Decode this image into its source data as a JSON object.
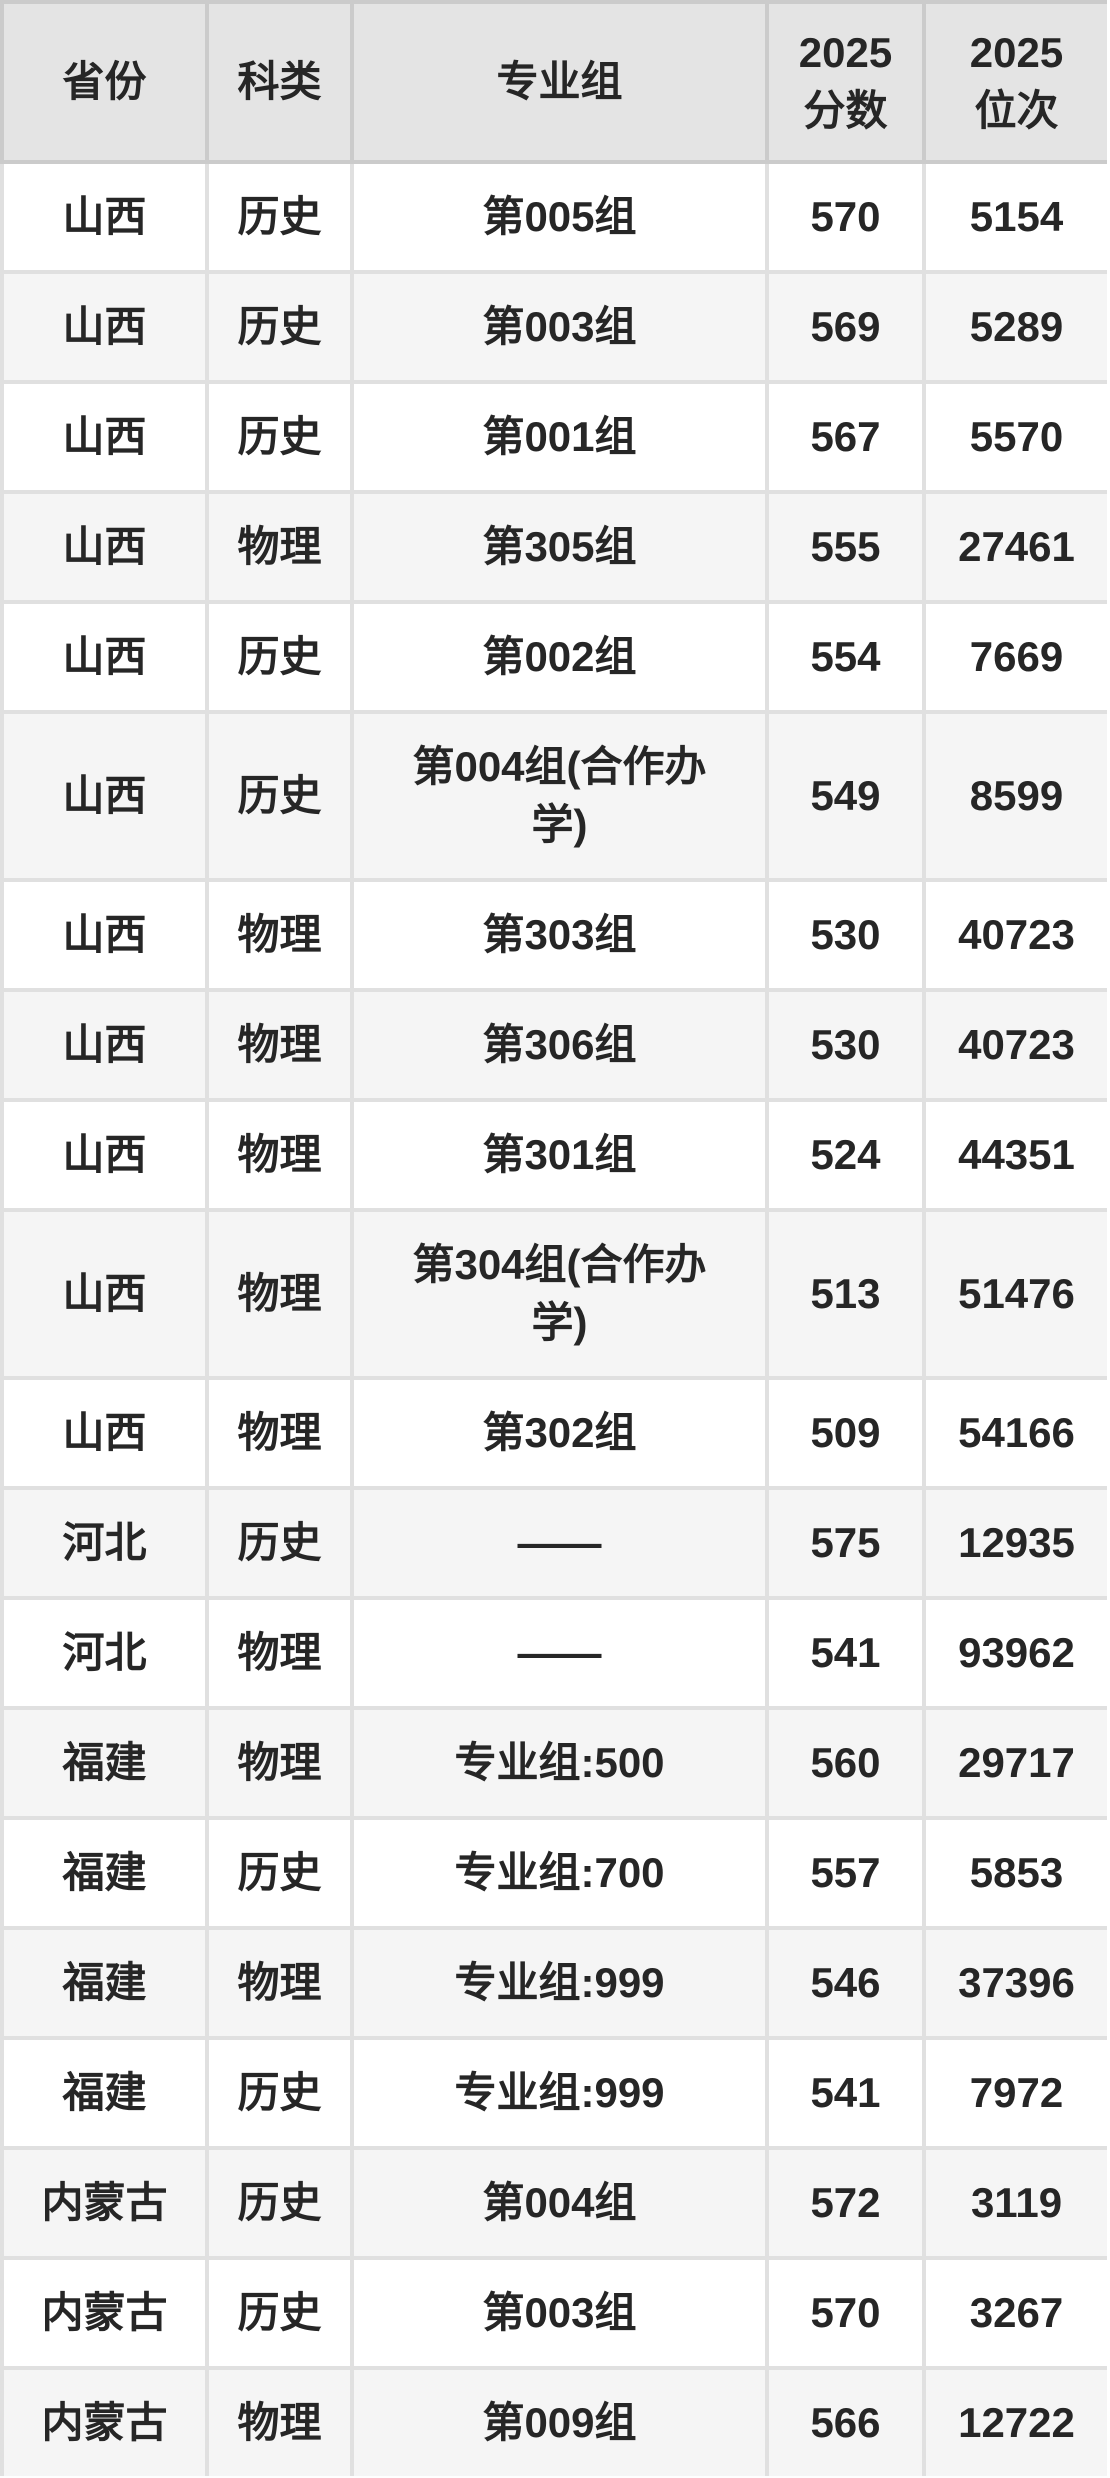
{
  "colors": {
    "header_background": "#e4e4e4",
    "row_odd_background": "#ffffff",
    "row_even_background": "#f5f5f5",
    "header_border": "#cbcbcb",
    "body_border": "#e0e0e0",
    "text": "#262626"
  },
  "chart_data": {
    "type": "table",
    "columns": [
      "省份",
      "科类",
      "专业组",
      "2025\n分数",
      "2025\n位次"
    ],
    "column_keys": [
      "province",
      "subject",
      "group",
      "score",
      "rank"
    ],
    "rows": [
      [
        "山西",
        "历史",
        "第005组",
        570,
        5154
      ],
      [
        "山西",
        "历史",
        "第003组",
        569,
        5289
      ],
      [
        "山西",
        "历史",
        "第001组",
        567,
        5570
      ],
      [
        "山西",
        "物理",
        "第305组",
        555,
        27461
      ],
      [
        "山西",
        "历史",
        "第002组",
        554,
        7669
      ],
      [
        "山西",
        "历史",
        "第004组(合作办\n学)",
        549,
        8599
      ],
      [
        "山西",
        "物理",
        "第303组",
        530,
        40723
      ],
      [
        "山西",
        "物理",
        "第306组",
        530,
        40723
      ],
      [
        "山西",
        "物理",
        "第301组",
        524,
        44351
      ],
      [
        "山西",
        "物理",
        "第304组(合作办\n学)",
        513,
        51476
      ],
      [
        "山西",
        "物理",
        "第302组",
        509,
        54166
      ],
      [
        "河北",
        "历史",
        "——",
        575,
        12935
      ],
      [
        "河北",
        "物理",
        "——",
        541,
        93962
      ],
      [
        "福建",
        "物理",
        "专业组:500",
        560,
        29717
      ],
      [
        "福建",
        "历史",
        "专业组:700",
        557,
        5853
      ],
      [
        "福建",
        "物理",
        "专业组:999",
        546,
        37396
      ],
      [
        "福建",
        "历史",
        "专业组:999",
        541,
        7972
      ],
      [
        "内蒙古",
        "历史",
        "第004组",
        572,
        3119
      ],
      [
        "内蒙古",
        "历史",
        "第003组",
        570,
        3267
      ],
      [
        "内蒙古",
        "物理",
        "第009组",
        566,
        12722
      ]
    ]
  }
}
